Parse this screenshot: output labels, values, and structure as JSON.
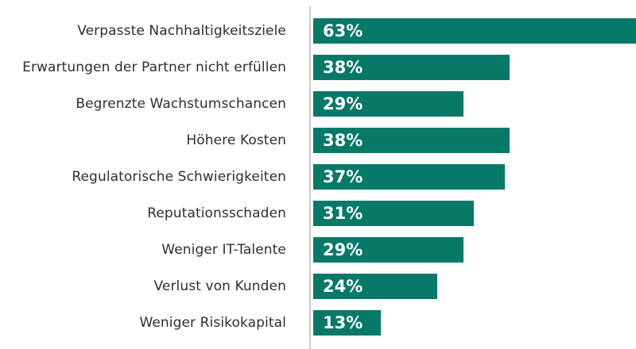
{
  "chart_data": {
    "type": "bar",
    "orientation": "horizontal",
    "title": "",
    "xlabel": "",
    "ylabel": "",
    "categories": [
      "Verpasste Nachhaltigkeitsziele",
      "Erwartungen der Partner nicht erfüllen",
      "Begrenzte Wachstumschancen",
      "Höhere Kosten",
      "Regulatorische Schwierigkeiten",
      "Reputationsschaden",
      "Weniger IT-Talente",
      "Verlust von Kunden",
      "Weniger Risikokapital"
    ],
    "values": [
      63,
      38,
      29,
      38,
      37,
      31,
      29,
      24,
      13
    ],
    "value_labels": [
      "63%",
      "38%",
      "29%",
      "38%",
      "37%",
      "31%",
      "29%",
      "24%",
      "13%"
    ],
    "unit": "%",
    "xlim": [
      0,
      63
    ],
    "grid": false,
    "legend": false,
    "colors": {
      "bar": "#067969",
      "category_label": "#2e2e2e",
      "value_label": "#ffffff",
      "axis_line": "#c9c9c9",
      "background": "#ffffff"
    }
  }
}
